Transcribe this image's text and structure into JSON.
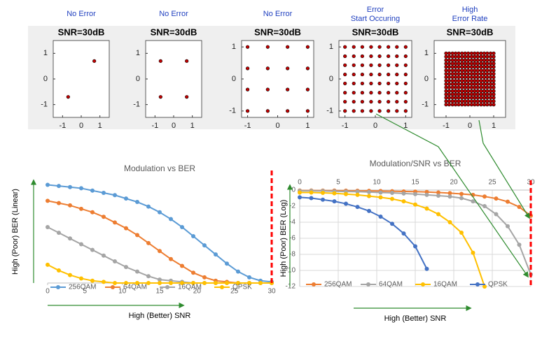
{
  "chart_data": [
    {
      "type": "scatter",
      "annotation": [
        "No Error"
      ],
      "title": "SNR=30dB",
      "color": "#c00000",
      "x": [
        -0.7,
        0.7
      ],
      "y": [
        -0.7,
        0.7
      ],
      "xlim": [
        -1.5,
        1.5
      ],
      "ylim": [
        -1.5,
        1.5
      ],
      "xticks": [
        -1,
        0,
        1
      ],
      "yticks": [
        -1,
        0,
        1
      ]
    },
    {
      "type": "scatter",
      "annotation": [
        "No Error"
      ],
      "title": "SNR=30dB",
      "color": "#c00000",
      "x": [
        -0.7,
        0.7,
        -0.7,
        0.7
      ],
      "y": [
        -0.7,
        -0.7,
        0.7,
        0.7
      ],
      "xlim": [
        -1.5,
        1.5
      ],
      "ylim": [
        -1.5,
        1.5
      ],
      "xticks": [
        -1,
        0,
        1
      ],
      "yticks": [
        -1,
        0,
        1
      ]
    },
    {
      "type": "scatter",
      "annotation": [
        "No Error"
      ],
      "title": "SNR=30dB",
      "color": "#c00000",
      "x": [
        -1,
        -0.33,
        0.33,
        1,
        -1,
        -0.33,
        0.33,
        1,
        -1,
        -0.33,
        0.33,
        1,
        -1,
        -0.33,
        0.33,
        1
      ],
      "y": [
        -1,
        -1,
        -1,
        -1,
        -0.33,
        -0.33,
        -0.33,
        -0.33,
        0.33,
        0.33,
        0.33,
        0.33,
        1,
        1,
        1,
        1
      ],
      "xlim": [
        -1.2,
        1.2
      ],
      "ylim": [
        -1.2,
        1.2
      ],
      "xticks": [
        -1,
        0,
        1
      ],
      "yticks": [
        -1,
        0,
        1
      ]
    },
    {
      "type": "scatter",
      "annotation": [
        "Error",
        "Start Occuring"
      ],
      "title": "SNR=30dB",
      "color": "#c00000",
      "x": [
        -1,
        -0.71,
        -0.43,
        -0.14,
        0.14,
        0.43,
        0.71,
        1,
        -1,
        -0.71,
        -0.43,
        -0.14,
        0.14,
        0.43,
        0.71,
        1,
        -1,
        -0.71,
        -0.43,
        -0.14,
        0.14,
        0.43,
        0.71,
        1,
        -1,
        -0.71,
        -0.43,
        -0.14,
        0.14,
        0.43,
        0.71,
        1,
        -1,
        -0.71,
        -0.43,
        -0.14,
        0.14,
        0.43,
        0.71,
        1,
        -1,
        -0.71,
        -0.43,
        -0.14,
        0.14,
        0.43,
        0.71,
        1,
        -1,
        -0.71,
        -0.43,
        -0.14,
        0.14,
        0.43,
        0.71,
        1,
        -1,
        -0.71,
        -0.43,
        -0.14,
        0.14,
        0.43,
        0.71,
        1
      ],
      "y": [
        -1,
        -1,
        -1,
        -1,
        -1,
        -1,
        -1,
        -1,
        -0.71,
        -0.71,
        -0.71,
        -0.71,
        -0.71,
        -0.71,
        -0.71,
        -0.71,
        -0.43,
        -0.43,
        -0.43,
        -0.43,
        -0.43,
        -0.43,
        -0.43,
        -0.43,
        -0.14,
        -0.14,
        -0.14,
        -0.14,
        -0.14,
        -0.14,
        -0.14,
        -0.14,
        0.14,
        0.14,
        0.14,
        0.14,
        0.14,
        0.14,
        0.14,
        0.14,
        0.43,
        0.43,
        0.43,
        0.43,
        0.43,
        0.43,
        0.43,
        0.43,
        0.71,
        0.71,
        0.71,
        0.71,
        0.71,
        0.71,
        0.71,
        0.71,
        1,
        1,
        1,
        1,
        1,
        1,
        1,
        1
      ],
      "xlim": [
        -1.2,
        1.2
      ],
      "ylim": [
        -1.2,
        1.2
      ],
      "xticks": [
        -1,
        0,
        1
      ],
      "yticks": [
        -1,
        0,
        1
      ]
    },
    {
      "type": "scatter",
      "annotation": [
        "High",
        "Error Rate"
      ],
      "title": "SNR=30dB",
      "color": "#c00000",
      "x": [
        -1,
        -0.87,
        -0.73,
        -0.6,
        -0.47,
        -0.33,
        -0.2,
        -0.07,
        0.07,
        0.2,
        0.33,
        0.47,
        0.6,
        0.73,
        0.87,
        1,
        -1,
        -0.87,
        -0.73,
        -0.6,
        -0.47,
        -0.33,
        -0.2,
        -0.07,
        0.07,
        0.2,
        0.33,
        0.47,
        0.6,
        0.73,
        0.87,
        1,
        -1,
        -0.87,
        -0.73,
        -0.6,
        -0.47,
        -0.33,
        -0.2,
        -0.07,
        0.07,
        0.2,
        0.33,
        0.47,
        0.6,
        0.73,
        0.87,
        1,
        -1,
        -0.87,
        -0.73,
        -0.6,
        -0.47,
        -0.33,
        -0.2,
        -0.07,
        0.07,
        0.2,
        0.33,
        0.47,
        0.6,
        0.73,
        0.87,
        1,
        -1,
        -0.87,
        -0.73,
        -0.6,
        -0.47,
        -0.33,
        -0.2,
        -0.07,
        0.07,
        0.2,
        0.33,
        0.47,
        0.6,
        0.73,
        0.87,
        1,
        -1,
        -0.87,
        -0.73,
        -0.6,
        -0.47,
        -0.33,
        -0.2,
        -0.07,
        0.07,
        0.2,
        0.33,
        0.47,
        0.6,
        0.73,
        0.87,
        1,
        -1,
        -0.87,
        -0.73,
        -0.6,
        -0.47,
        -0.33,
        -0.2,
        -0.07,
        0.07,
        0.2,
        0.33,
        0.47,
        0.6,
        0.73,
        0.87,
        1,
        -1,
        -0.87,
        -0.73,
        -0.6,
        -0.47,
        -0.33,
        -0.2,
        -0.07,
        0.07,
        0.2,
        0.33,
        0.47,
        0.6,
        0.73,
        0.87,
        1,
        -1,
        -0.87,
        -0.73,
        -0.6,
        -0.47,
        -0.33,
        -0.2,
        -0.07,
        0.07,
        0.2,
        0.33,
        0.47,
        0.6,
        0.73,
        0.87,
        1,
        -1,
        -0.87,
        -0.73,
        -0.6,
        -0.47,
        -0.33,
        -0.2,
        -0.07,
        0.07,
        0.2,
        0.33,
        0.47,
        0.6,
        0.73,
        0.87,
        1,
        -1,
        -0.87,
        -0.73,
        -0.6,
        -0.47,
        -0.33,
        -0.2,
        -0.07,
        0.07,
        0.2,
        0.33,
        0.47,
        0.6,
        0.73,
        0.87,
        1,
        -1,
        -0.87,
        -0.73,
        -0.6,
        -0.47,
        -0.33,
        -0.2,
        -0.07,
        0.07,
        0.2,
        0.33,
        0.47,
        0.6,
        0.73,
        0.87,
        1,
        -1,
        -0.87,
        -0.73,
        -0.6,
        -0.47,
        -0.33,
        -0.2,
        -0.07,
        0.07,
        0.2,
        0.33,
        0.47,
        0.6,
        0.73,
        0.87,
        1,
        -1,
        -0.87,
        -0.73,
        -0.6,
        -0.47,
        -0.33,
        -0.2,
        -0.07,
        0.07,
        0.2,
        0.33,
        0.47,
        0.6,
        0.73,
        0.87,
        1,
        -1,
        -0.87,
        -0.73,
        -0.6,
        -0.47,
        -0.33,
        -0.2,
        -0.07,
        0.07,
        0.2,
        0.33,
        0.47,
        0.6,
        0.73,
        0.87,
        1,
        -1,
        -0.87,
        -0.73,
        -0.6,
        -0.47,
        -0.33,
        -0.2,
        -0.07,
        0.07,
        0.2,
        0.33,
        0.47,
        0.6,
        0.73,
        0.87,
        1
      ],
      "y": [
        -1,
        -1,
        -1,
        -1,
        -1,
        -1,
        -1,
        -1,
        -1,
        -1,
        -1,
        -1,
        -1,
        -1,
        -1,
        -1,
        -0.87,
        -0.87,
        -0.87,
        -0.87,
        -0.87,
        -0.87,
        -0.87,
        -0.87,
        -0.87,
        -0.87,
        -0.87,
        -0.87,
        -0.87,
        -0.87,
        -0.87,
        -0.87,
        -0.73,
        -0.73,
        -0.73,
        -0.73,
        -0.73,
        -0.73,
        -0.73,
        -0.73,
        -0.73,
        -0.73,
        -0.73,
        -0.73,
        -0.73,
        -0.73,
        -0.73,
        -0.73,
        -0.6,
        -0.6,
        -0.6,
        -0.6,
        -0.6,
        -0.6,
        -0.6,
        -0.6,
        -0.6,
        -0.6,
        -0.6,
        -0.6,
        -0.6,
        -0.6,
        -0.6,
        -0.6,
        -0.47,
        -0.47,
        -0.47,
        -0.47,
        -0.47,
        -0.47,
        -0.47,
        -0.47,
        -0.47,
        -0.47,
        -0.47,
        -0.47,
        -0.47,
        -0.47,
        -0.47,
        -0.47,
        -0.33,
        -0.33,
        -0.33,
        -0.33,
        -0.33,
        -0.33,
        -0.33,
        -0.33,
        -0.33,
        -0.33,
        -0.33,
        -0.33,
        -0.33,
        -0.33,
        -0.33,
        -0.33,
        -0.2,
        -0.2,
        -0.2,
        -0.2,
        -0.2,
        -0.2,
        -0.2,
        -0.2,
        -0.2,
        -0.2,
        -0.2,
        -0.2,
        -0.2,
        -0.2,
        -0.2,
        -0.2,
        -0.07,
        -0.07,
        -0.07,
        -0.07,
        -0.07,
        -0.07,
        -0.07,
        -0.07,
        -0.07,
        -0.07,
        -0.07,
        -0.07,
        -0.07,
        -0.07,
        -0.07,
        -0.07,
        0.07,
        0.07,
        0.07,
        0.07,
        0.07,
        0.07,
        0.07,
        0.07,
        0.07,
        0.07,
        0.07,
        0.07,
        0.07,
        0.07,
        0.07,
        0.07,
        0.2,
        0.2,
        0.2,
        0.2,
        0.2,
        0.2,
        0.2,
        0.2,
        0.2,
        0.2,
        0.2,
        0.2,
        0.2,
        0.2,
        0.2,
        0.2,
        0.33,
        0.33,
        0.33,
        0.33,
        0.33,
        0.33,
        0.33,
        0.33,
        0.33,
        0.33,
        0.33,
        0.33,
        0.33,
        0.33,
        0.33,
        0.33,
        0.47,
        0.47,
        0.47,
        0.47,
        0.47,
        0.47,
        0.47,
        0.47,
        0.47,
        0.47,
        0.47,
        0.47,
        0.47,
        0.47,
        0.47,
        0.47,
        0.6,
        0.6,
        0.6,
        0.6,
        0.6,
        0.6,
        0.6,
        0.6,
        0.6,
        0.6,
        0.6,
        0.6,
        0.6,
        0.6,
        0.6,
        0.6,
        0.73,
        0.73,
        0.73,
        0.73,
        0.73,
        0.73,
        0.73,
        0.73,
        0.73,
        0.73,
        0.73,
        0.73,
        0.73,
        0.73,
        0.73,
        0.73,
        0.87,
        0.87,
        0.87,
        0.87,
        0.87,
        0.87,
        0.87,
        0.87,
        0.87,
        0.87,
        0.87,
        0.87,
        0.87,
        0.87,
        0.87,
        0.87,
        1,
        1,
        1,
        1,
        1,
        1,
        1,
        1,
        1,
        1,
        1,
        1,
        1,
        1,
        1,
        1
      ],
      "xlim": [
        -1.5,
        1.5
      ],
      "ylim": [
        -1.5,
        1.5
      ],
      "xticks": [
        -1,
        0,
        1
      ],
      "yticks": [
        -1,
        0,
        1
      ]
    },
    {
      "type": "line",
      "title": "Modulation vs BER",
      "xlabel": "High (Better) SNR",
      "ylabel": "High (Poor) BER (Linear)",
      "x": [
        0,
        1.5,
        3,
        4.5,
        6,
        7.5,
        9,
        10.5,
        12,
        13.5,
        15,
        16.5,
        18,
        19.5,
        21,
        22.5,
        24,
        25.5,
        27,
        28.5,
        30
      ],
      "series": [
        {
          "name": "256QAM",
          "color": "#5b9bd5",
          "values": [
            0.86,
            0.85,
            0.84,
            0.83,
            0.81,
            0.79,
            0.77,
            0.74,
            0.71,
            0.67,
            0.62,
            0.56,
            0.49,
            0.41,
            0.33,
            0.25,
            0.17,
            0.1,
            0.05,
            0.02,
            0.01
          ]
        },
        {
          "name": "64QAM",
          "color": "#ed7d31",
          "values": [
            0.72,
            0.7,
            0.68,
            0.65,
            0.62,
            0.58,
            0.53,
            0.48,
            0.42,
            0.35,
            0.28,
            0.21,
            0.15,
            0.09,
            0.05,
            0.02,
            0.01,
            0,
            0,
            0,
            0
          ]
        },
        {
          "name": "16QAM",
          "color": "#a5a5a5",
          "values": [
            0.49,
            0.44,
            0.39,
            0.34,
            0.29,
            0.24,
            0.19,
            0.14,
            0.1,
            0.06,
            0.03,
            0.02,
            0.01,
            0,
            0,
            0,
            0,
            0,
            0,
            0,
            0
          ]
        },
        {
          "name": "QPSK",
          "color": "#ffc000",
          "values": [
            0.16,
            0.11,
            0.07,
            0.04,
            0.02,
            0.01,
            0,
            0,
            0,
            0,
            0,
            0,
            0,
            0,
            0,
            0,
            0,
            0,
            0,
            0,
            0
          ]
        }
      ],
      "xlim": [
        0,
        30
      ],
      "ylim": [
        0,
        0.9
      ],
      "xticks": [
        0,
        5,
        10,
        15,
        20,
        25,
        30
      ],
      "grid": false,
      "legend": "bottom",
      "vline": {
        "x": 30,
        "color": "#ff0000"
      }
    },
    {
      "type": "line",
      "title": "Modulation/SNR vs BER",
      "xlabel": "High (Better) SNR",
      "ylabel": "High (Poor) BER (Log)",
      "x": [
        0,
        1.5,
        3,
        4.5,
        6,
        7.5,
        9,
        10.5,
        12,
        13.5,
        15,
        16.5,
        18,
        19.5,
        21,
        22.5,
        24,
        25.5,
        27,
        28.5,
        30
      ],
      "series": [
        {
          "name": "256QAM",
          "color": "#ed7d31",
          "values": [
            -0.05,
            -0.05,
            -0.06,
            -0.07,
            -0.08,
            -0.09,
            -0.1,
            -0.12,
            -0.14,
            -0.17,
            -0.2,
            -0.24,
            -0.3,
            -0.38,
            -0.48,
            -0.6,
            -0.8,
            -1.05,
            -1.45,
            -2.1,
            -3.2
          ]
        },
        {
          "name": "64QAM",
          "color": "#a5a5a5",
          "values": [
            -0.1,
            -0.1,
            -0.12,
            -0.15,
            -0.18,
            -0.2,
            -0.25,
            -0.3,
            -0.35,
            -0.42,
            -0.5,
            -0.6,
            -0.7,
            -0.8,
            -1,
            -1.4,
            -2,
            -3,
            -4.5,
            -6.8,
            -10.5
          ]
        },
        {
          "name": "16QAM",
          "color": "#ffc000",
          "values": [
            -0.3,
            -0.3,
            -0.35,
            -0.4,
            -0.5,
            -0.6,
            -0.75,
            -0.9,
            -1.1,
            -1.4,
            -1.8,
            -2.3,
            -3,
            -4,
            -5.3,
            -7.8,
            -12,
            null,
            null,
            null,
            null
          ]
        },
        {
          "name": "QPSK",
          "color": "#4472c4",
          "values": [
            -0.9,
            -1,
            -1.2,
            -1.4,
            -1.7,
            -2.1,
            -2.6,
            -3.3,
            -4.2,
            -5.4,
            -7,
            -9.8,
            null,
            null,
            null,
            null,
            null,
            null,
            null,
            null,
            null
          ]
        }
      ],
      "xlim": [
        0,
        30
      ],
      "ylim": [
        -12,
        0
      ],
      "xticks": [
        0,
        5,
        10,
        15,
        20,
        25,
        30
      ],
      "yticks": [
        0,
        -2,
        -4,
        -6,
        -8,
        -10,
        -12
      ],
      "grid": true,
      "xaxis_position": "top",
      "legend": "bottom",
      "vline": {
        "x": 30,
        "color": "#ff0000"
      }
    }
  ]
}
